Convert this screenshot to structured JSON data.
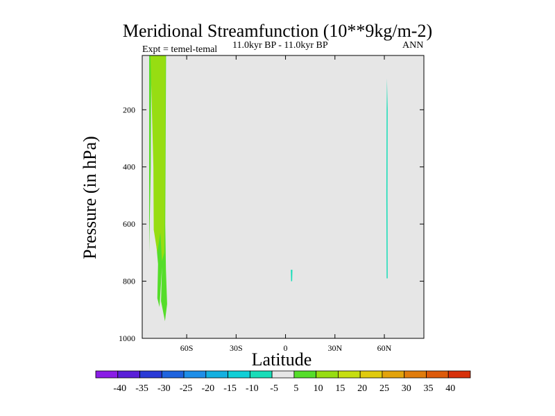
{
  "chart_data": {
    "type": "contour",
    "title": "Meridional Streamfunction (10**9kg/m-2)",
    "left_label": "Expt = temel-temal",
    "center_label": "11.0kyr BP - 11.0kyr BP",
    "right_label": "ANN",
    "xlabel": "Latitude",
    "ylabel": "Pressure (in hPa)",
    "x_ticks": [
      {
        "value": -60,
        "label": "60S"
      },
      {
        "value": -30,
        "label": "30S"
      },
      {
        "value": 0,
        "label": "0"
      },
      {
        "value": 30,
        "label": "30N"
      },
      {
        "value": 60,
        "label": "60N"
      }
    ],
    "y_ticks": [
      200,
      400,
      600,
      800,
      1000
    ],
    "xlim": [
      -87,
      84
    ],
    "ylim": [
      1000,
      10
    ],
    "colorbar": {
      "levels": [
        -40,
        -35,
        -30,
        -25,
        -20,
        -15,
        -10,
        -5,
        5,
        10,
        15,
        20,
        25,
        30,
        35,
        40
      ],
      "colors": [
        "#8a1de6",
        "#5a1fd8",
        "#2a3ad6",
        "#1f63de",
        "#1e8ee8",
        "#14b0e0",
        "#10cfd6",
        "#18ddb8",
        "#e6e6e6",
        "#55dd2a",
        "#97dd12",
        "#c6de10",
        "#e0ca0e",
        "#e2a30c",
        "#e07c0c",
        "#dd5a0a",
        "#d7300a"
      ]
    },
    "features": [
      {
        "name": "west-outer-lobe",
        "color": "#55dd2a",
        "value_range": [
          5,
          10
        ],
        "points": [
          [
            -82.8,
            10
          ],
          [
            -79.0,
            10
          ],
          [
            -79.4,
            300
          ],
          [
            -79.5,
            600
          ],
          [
            -77.4,
            740
          ],
          [
            -77.8,
            860
          ],
          [
            -76.5,
            890
          ],
          [
            -75.0,
            750
          ],
          [
            -75.6,
            870
          ],
          [
            -73.2,
            940
          ],
          [
            -71.9,
            880
          ],
          [
            -72.6,
            760
          ],
          [
            -73.0,
            600
          ],
          [
            -72.5,
            10
          ],
          [
            -81.5,
            10
          ],
          [
            -81.8,
            400
          ],
          [
            -82.8,
            700
          ]
        ]
      },
      {
        "name": "west-inner-core",
        "color": "#97dd12",
        "value_range": [
          10,
          15
        ],
        "points": [
          [
            -82.0,
            10
          ],
          [
            -72.8,
            10
          ],
          [
            -73.0,
            300
          ],
          [
            -73.3,
            580
          ],
          [
            -73.6,
            700
          ],
          [
            -75.0,
            730
          ],
          [
            -76.0,
            630
          ],
          [
            -77.8,
            700
          ],
          [
            -80.0,
            620
          ],
          [
            -80.2,
            400
          ]
        ]
      },
      {
        "name": "equator-spot",
        "color": "#18ddb8",
        "value_range": [
          -10,
          -5
        ],
        "points": [
          [
            3.2,
            760
          ],
          [
            4.2,
            760
          ],
          [
            4.0,
            800
          ],
          [
            3.4,
            800
          ]
        ]
      },
      {
        "name": "60n-streak",
        "color": "#18ddb8",
        "value_range": [
          -10,
          -5
        ],
        "points": [
          [
            61.6,
            90
          ],
          [
            62.0,
            200
          ],
          [
            61.9,
            500
          ],
          [
            62.0,
            790
          ],
          [
            61.4,
            790
          ],
          [
            61.2,
            500
          ],
          [
            61.4,
            200
          ]
        ]
      }
    ]
  }
}
